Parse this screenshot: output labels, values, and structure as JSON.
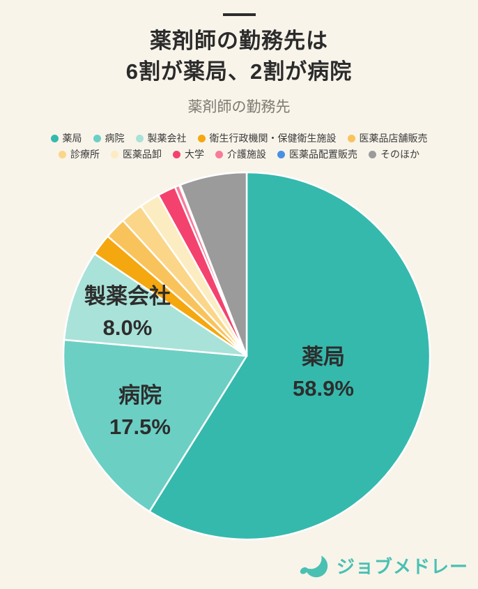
{
  "header": {
    "title_line1": "薬剤師の勤務先は",
    "title_line2": "6割が薬局、2割が病院",
    "subtitle": "薬剤師の勤務先"
  },
  "footer": {
    "brand": "ジョブメドレー",
    "brand_color": "#49c0b2",
    "logo_icon": "crescent-j-icon"
  },
  "page": {
    "background_color": "#f8f4ea",
    "title_color": "#2b2b2b",
    "subtitle_color": "#7d7a72",
    "label_color": "#2d2d2d"
  },
  "chart_data": {
    "type": "pie",
    "title": "薬剤師の勤務先",
    "start_angle_deg": 0,
    "direction": "clockwise",
    "legend_position": "top",
    "separator_color": "#ffffff",
    "categories": [
      "薬局",
      "病院",
      "製薬会社",
      "衛生行政機関・保健衛生施設",
      "医薬品店舗販売",
      "診療所",
      "医薬品卸",
      "大学",
      "介護施設",
      "医薬品配置販売",
      "そのほか"
    ],
    "values": [
      58.9,
      17.5,
      8.0,
      1.9,
      1.9,
      2.0,
      1.8,
      1.6,
      0.4,
      0.1,
      5.9
    ],
    "colors": [
      "#35b9ad",
      "#6bcfc4",
      "#a9e2d8",
      "#f5a70f",
      "#f9c35c",
      "#fbd689",
      "#fcecc1",
      "#f4426e",
      "#f87b9b",
      "#4a90e2",
      "#9b9b9b"
    ],
    "slice_labels": [
      {
        "slice_index": 0,
        "name": "薬局",
        "value_text": "58.9%"
      },
      {
        "slice_index": 1,
        "name": "病院",
        "value_text": "17.5%"
      },
      {
        "slice_index": 2,
        "name": "製薬会社",
        "value_text": "8.0%"
      }
    ]
  }
}
